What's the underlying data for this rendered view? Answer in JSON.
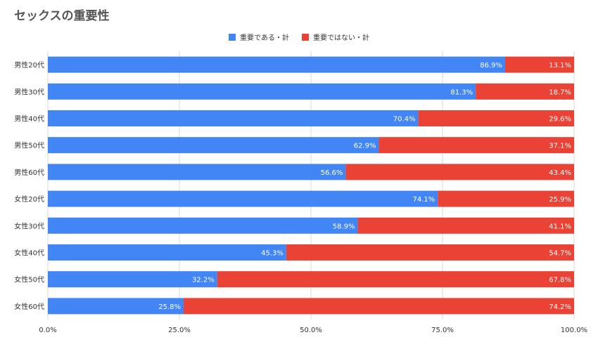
{
  "title": "セックスの重要性",
  "colors": {
    "series_1": "#4285f4",
    "series_2": "#ea4335",
    "grid": "#d9d9d9"
  },
  "chart_data": {
    "type": "bar",
    "orientation": "horizontal",
    "stacked": true,
    "title": "セックスの重要性",
    "categories": [
      "男性20代",
      "男性30代",
      "男性40代",
      "男性50代",
      "男性60代",
      "女性20代",
      "女性30代",
      "女性40代",
      "女性50代",
      "女性60代"
    ],
    "series": [
      {
        "name": "重要である・計",
        "color": "#4285f4",
        "values": [
          86.9,
          81.3,
          70.4,
          62.9,
          56.6,
          74.1,
          58.9,
          45.3,
          32.2,
          25.8
        ],
        "labels": [
          "86.9%",
          "81.3%",
          "70.4%",
          "62.9%",
          "56.6%",
          "74.1%",
          "58.9%",
          "45.3%",
          "32.2%",
          "25.8%"
        ]
      },
      {
        "name": "重要ではない・計",
        "color": "#ea4335",
        "values": [
          13.1,
          18.7,
          29.6,
          37.1,
          43.4,
          25.9,
          41.1,
          54.7,
          67.8,
          74.2
        ],
        "labels": [
          "13.1%",
          "18.7%",
          "29.6%",
          "37.1%",
          "43.4%",
          "25.9%",
          "41.1%",
          "54.7%",
          "67.8%",
          "74.2%"
        ]
      }
    ],
    "xlim": [
      0,
      100
    ],
    "xticks": [
      0,
      25,
      50,
      75,
      100
    ],
    "xtick_labels": [
      "0.0%",
      "25.0%",
      "50.0%",
      "75.0%",
      "100.0%"
    ],
    "grid": true,
    "legend_position": "top-center"
  }
}
